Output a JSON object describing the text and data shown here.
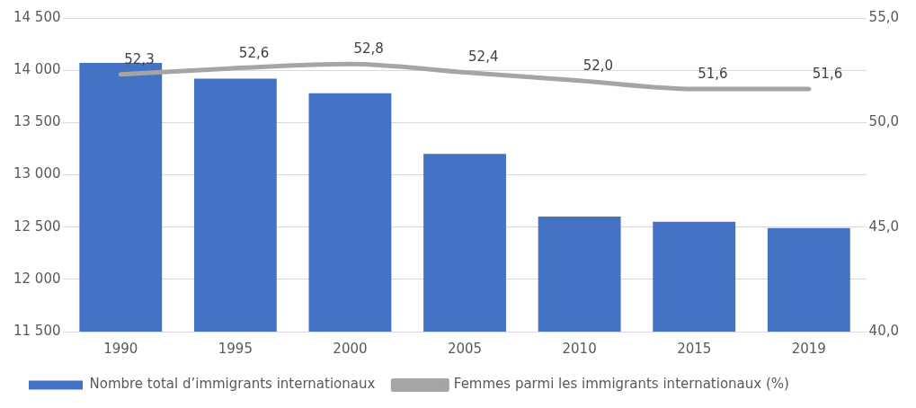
{
  "chart_data": {
    "type": "bar",
    "categories": [
      "1990",
      "1995",
      "2000",
      "2005",
      "2010",
      "2015",
      "2019"
    ],
    "series": [
      {
        "name": "Nombre total d’immigrants internationaux",
        "color": "#4472c4",
        "values": [
          14070,
          13920,
          13780,
          13200,
          12600,
          12550,
          12490
        ]
      },
      {
        "name": "Femmes parmi les immigrants internationaux (%)",
        "type": "line",
        "axis": "y2",
        "color": "#a5a5a5",
        "values": [
          52.3,
          52.6,
          52.8,
          52.4,
          52.0,
          51.6,
          51.6
        ],
        "value_labels": [
          "52,3",
          "52,6",
          "52,8",
          "52,4",
          "52,0",
          "51,6",
          "51,6"
        ]
      }
    ],
    "ylim": [
      11500,
      14500
    ],
    "yticks": [
      {
        "value": 11500,
        "label": "11 500"
      },
      {
        "value": 12000,
        "label": "12 000"
      },
      {
        "value": 12500,
        "label": "12 500"
      },
      {
        "value": 13000,
        "label": "13 000"
      },
      {
        "value": 13500,
        "label": "13 500"
      },
      {
        "value": 14000,
        "label": "14 000"
      },
      {
        "value": 14500,
        "label": "14 500"
      }
    ],
    "y2lim": [
      40,
      55
    ],
    "y2ticks": [
      {
        "value": 40,
        "label": "40,0"
      },
      {
        "value": 45,
        "label": "45,0"
      },
      {
        "value": 50,
        "label": "50,0"
      },
      {
        "value": 55,
        "label": "55,0"
      }
    ],
    "grid": "y",
    "legend": "bottom",
    "marker": "none",
    "line_style": "solid"
  }
}
